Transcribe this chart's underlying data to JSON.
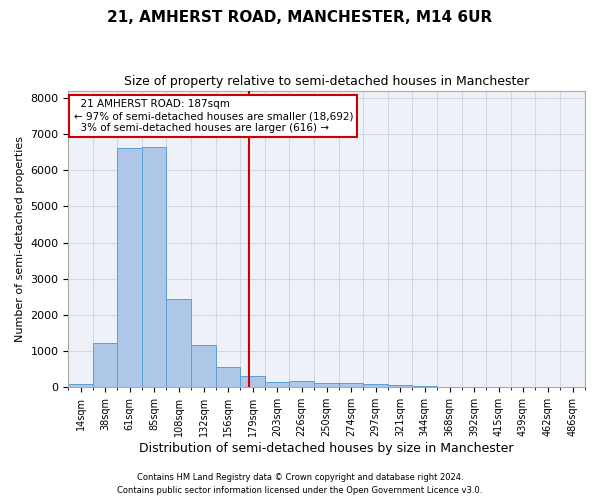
{
  "title": "21, AMHERST ROAD, MANCHESTER, M14 6UR",
  "subtitle": "Size of property relative to semi-detached houses in Manchester",
  "xlabel": "Distribution of semi-detached houses by size in Manchester",
  "ylabel": "Number of semi-detached properties",
  "footer_line1": "Contains HM Land Registry data © Crown copyright and database right 2024.",
  "footer_line2": "Contains public sector information licensed under the Open Government Licence v3.0.",
  "property_size": 187,
  "property_label": "21 AMHERST ROAD: 187sqm",
  "smaller_pct": 97,
  "smaller_count": 18692,
  "larger_pct": 3,
  "larger_count": 616,
  "bin_labels": [
    "14sqm",
    "38sqm",
    "61sqm",
    "85sqm",
    "108sqm",
    "132sqm",
    "156sqm",
    "179sqm",
    "203sqm",
    "226sqm",
    "250sqm",
    "274sqm",
    "297sqm",
    "321sqm",
    "344sqm",
    "368sqm",
    "392sqm",
    "415sqm",
    "439sqm",
    "462sqm",
    "486sqm"
  ],
  "bin_edges": [
    14,
    38,
    61,
    85,
    108,
    132,
    156,
    179,
    203,
    226,
    250,
    274,
    297,
    321,
    344,
    368,
    392,
    415,
    439,
    462,
    486,
    510
  ],
  "bar_heights": [
    100,
    1220,
    6620,
    6650,
    2450,
    1170,
    555,
    310,
    145,
    175,
    110,
    108,
    80,
    55,
    45,
    20,
    10,
    15,
    8,
    5,
    3
  ],
  "bar_color": "#aec6e8",
  "bar_edge_color": "#5a9fd4",
  "grid_color": "#d0d8e8",
  "background_color": "#eef2f8",
  "vline_color": "#cc0000",
  "vline_x": 187,
  "annotation_box_color": "#cc0000",
  "ylim": [
    0,
    8200
  ],
  "yticks": [
    0,
    1000,
    2000,
    3000,
    4000,
    5000,
    6000,
    7000,
    8000
  ]
}
